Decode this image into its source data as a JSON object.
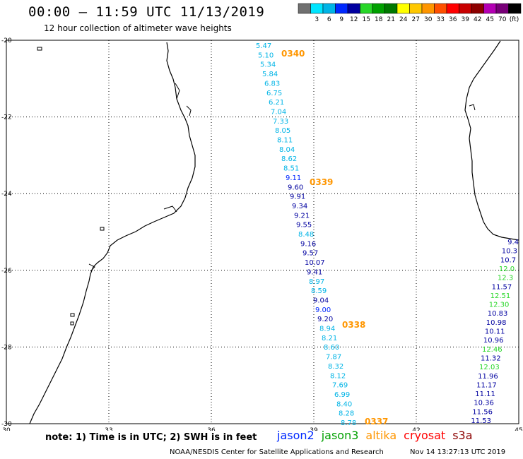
{
  "title": "00:00 – 11:59 UTC 11/13/2019",
  "subtitle": "12 hour collection of altimeter wave heights",
  "legend": {
    "colors": [
      "#707070",
      "#00e5ff",
      "#00b4e6",
      "#0028ff",
      "#0000a0",
      "#28d728",
      "#00a000",
      "#007800",
      "#ffff00",
      "#ffc800",
      "#ff9600",
      "#ff5000",
      "#ff0000",
      "#c80000",
      "#8c0000",
      "#b400b4",
      "#780078",
      "#000000"
    ],
    "labels": [
      "3",
      "6",
      "9",
      "12",
      "15",
      "18",
      "21",
      "24",
      "27",
      "30",
      "33",
      "36",
      "39",
      "42",
      "45",
      "70"
    ],
    "unit": "(ft)"
  },
  "axes": {
    "x_ticks": [
      "30",
      "33",
      "36",
      "39",
      "42",
      "45"
    ],
    "y_ticks": [
      "-20",
      "-22",
      "-24",
      "-26",
      "-28",
      "-30"
    ]
  },
  "passes": [
    {
      "label": "0340",
      "color": "#ff9600"
    },
    {
      "label": "0339",
      "color": "#ff9600"
    },
    {
      "label": "0338",
      "color": "#ff9600"
    },
    {
      "label": "0337",
      "color": "#ff9600"
    }
  ],
  "track_main": [
    {
      "v": "5.47",
      "c": "#00b4e6"
    },
    {
      "v": "5.10",
      "c": "#00b4e6"
    },
    {
      "v": "5.34",
      "c": "#00b4e6"
    },
    {
      "v": "5.84",
      "c": "#00b4e6"
    },
    {
      "v": "6.83",
      "c": "#00b4e6"
    },
    {
      "v": "6.75",
      "c": "#00b4e6"
    },
    {
      "v": "6.21",
      "c": "#00b4e6"
    },
    {
      "v": "7.04",
      "c": "#00b4e6"
    },
    {
      "v": "7.33",
      "c": "#00b4e6"
    },
    {
      "v": "8.05",
      "c": "#00b4e6"
    },
    {
      "v": "8.11",
      "c": "#00b4e6"
    },
    {
      "v": "8.04",
      "c": "#00b4e6"
    },
    {
      "v": "8.62",
      "c": "#00b4e6"
    },
    {
      "v": "8.51",
      "c": "#00b4e6"
    },
    {
      "v": "9.11",
      "c": "#0028ff"
    },
    {
      "v": "9.60",
      "c": "#0000a0"
    },
    {
      "v": "9.91",
      "c": "#0000a0"
    },
    {
      "v": "9.34",
      "c": "#0000a0"
    },
    {
      "v": "9.21",
      "c": "#0000a0"
    },
    {
      "v": "9.55",
      "c": "#0000a0"
    },
    {
      "v": "8.48",
      "c": "#00b4e6"
    },
    {
      "v": "9.16",
      "c": "#0000a0"
    },
    {
      "v": "9.57",
      "c": "#0000a0"
    },
    {
      "v": "10.07",
      "c": "#0000a0"
    },
    {
      "v": "9.41",
      "c": "#0000a0"
    },
    {
      "v": "8.97",
      "c": "#00b4e6"
    },
    {
      "v": "8.59",
      "c": "#00b4e6"
    },
    {
      "v": "9.04",
      "c": "#0000a0"
    },
    {
      "v": "9.00",
      "c": "#0028ff"
    },
    {
      "v": "9.20",
      "c": "#0000a0"
    },
    {
      "v": "8.94",
      "c": "#00b4e6"
    },
    {
      "v": "8.21",
      "c": "#00b4e6"
    },
    {
      "v": "8.60",
      "c": "#00b4e6"
    },
    {
      "v": "7.87",
      "c": "#00b4e6"
    },
    {
      "v": "8.32",
      "c": "#00b4e6"
    },
    {
      "v": "8.12",
      "c": "#00b4e6"
    },
    {
      "v": "7.69",
      "c": "#00b4e6"
    },
    {
      "v": "6.99",
      "c": "#00b4e6"
    },
    {
      "v": "8.40",
      "c": "#00b4e6"
    },
    {
      "v": "8.28",
      "c": "#00b4e6"
    },
    {
      "v": "8.78",
      "c": "#00b4e6"
    }
  ],
  "track_right": [
    {
      "v": "9.4",
      "c": "#0000a0"
    },
    {
      "v": "10.3",
      "c": "#0000a0"
    },
    {
      "v": "10.7",
      "c": "#0000a0"
    },
    {
      "v": "12.0",
      "c": "#28d728"
    },
    {
      "v": "12.3",
      "c": "#28d728"
    },
    {
      "v": "11.57",
      "c": "#0000a0"
    },
    {
      "v": "12.51",
      "c": "#28d728"
    },
    {
      "v": "12.30",
      "c": "#28d728"
    },
    {
      "v": "10.83",
      "c": "#0000a0"
    },
    {
      "v": "10.98",
      "c": "#0000a0"
    },
    {
      "v": "10.11",
      "c": "#0000a0"
    },
    {
      "v": "10.96",
      "c": "#0000a0"
    },
    {
      "v": "12.46",
      "c": "#28d728"
    },
    {
      "v": "11.32",
      "c": "#0000a0"
    },
    {
      "v": "12.03",
      "c": "#28d728"
    },
    {
      "v": "11.96",
      "c": "#0000a0"
    },
    {
      "v": "11.17",
      "c": "#0000a0"
    },
    {
      "v": "11.11",
      "c": "#0000a0"
    },
    {
      "v": "10.36",
      "c": "#0000a0"
    },
    {
      "v": "11.56",
      "c": "#0000a0"
    },
    {
      "v": "11.53",
      "c": "#0000a0"
    }
  ],
  "note": "note: 1) Time is in UTC; 2) SWH is in feet",
  "satellites": [
    {
      "name": "jason2",
      "color": "#0028ff"
    },
    {
      "name": "jason3",
      "color": "#00a000"
    },
    {
      "name": "altika",
      "color": "#ff9600"
    },
    {
      "name": "cryosat",
      "color": "#ff0000"
    },
    {
      "name": "s3a",
      "color": "#8c0000"
    }
  ],
  "credit": "NOAA/NESDIS Center for Satellite Applications and Research",
  "timestamp": "Nov 14 13:27:13 UTC 2019"
}
